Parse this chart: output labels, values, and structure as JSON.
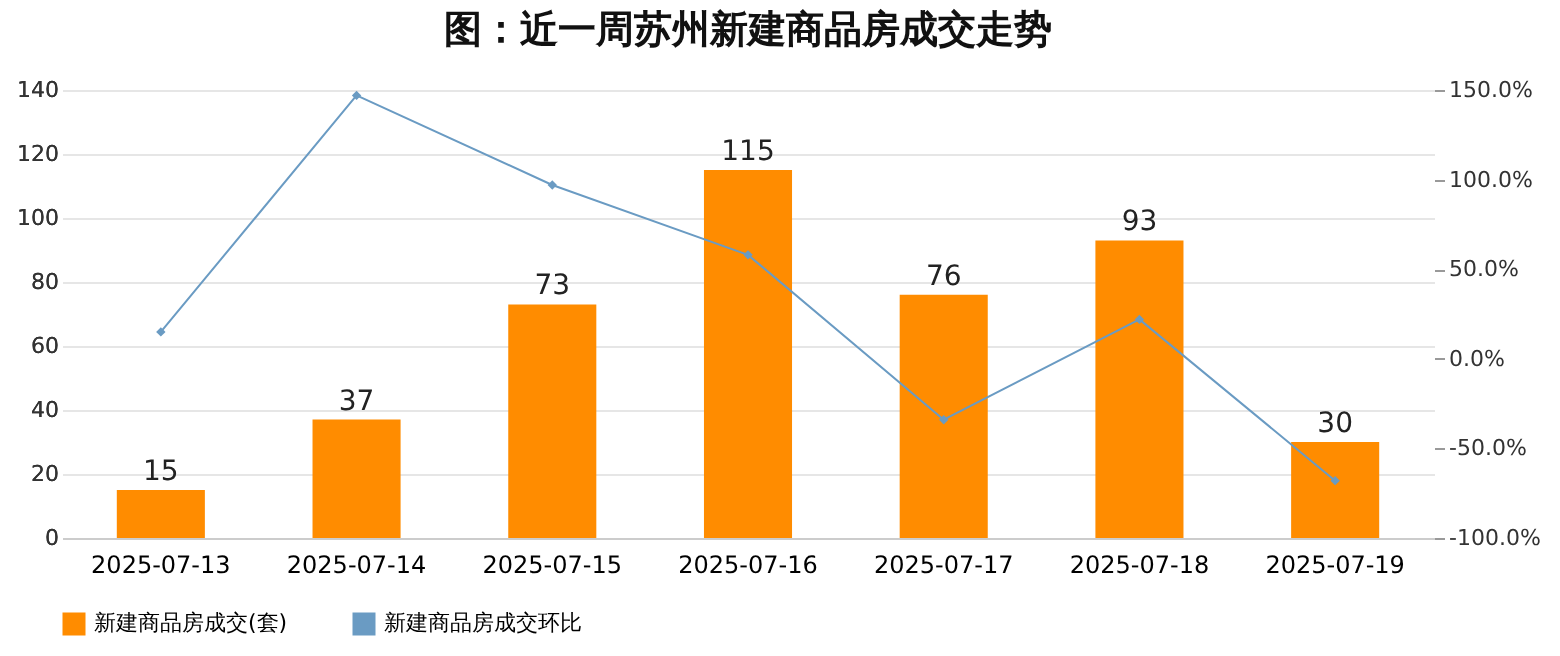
{
  "chart_data": {
    "type": "bar",
    "title": "图：近一周苏州新建商品房成交走势",
    "categories": [
      "2025-07-13",
      "2025-07-14",
      "2025-07-15",
      "2025-07-16",
      "2025-07-17",
      "2025-07-18",
      "2025-07-19"
    ],
    "series": [
      {
        "name": "新建商品房成交(套)",
        "color": "#ff8c00",
        "values": [
          15,
          37,
          73,
          115,
          76,
          93,
          30
        ],
        "value_labels": [
          "15",
          "37",
          "73",
          "115",
          "76",
          "93",
          "30"
        ]
      },
      {
        "name": "新建商品房成交环比",
        "type": "line",
        "axis": "y2",
        "color": "#6a9bc3",
        "marker": "diamond",
        "values": [
          15,
          147,
          97,
          58,
          -34,
          22,
          -68
        ]
      }
    ],
    "ylim": [
      0,
      140
    ],
    "yticks": [
      0,
      20,
      40,
      60,
      80,
      100,
      120,
      140
    ],
    "y2lim": [
      -100,
      150
    ],
    "y2ticks": [
      {
        "value": 150,
        "label": "150.0%"
      },
      {
        "value": 100,
        "label": "100.0%"
      },
      {
        "value": 50,
        "label": "50.0%"
      },
      {
        "value": 0,
        "label": "0.0%"
      },
      {
        "value": -50,
        "label": "-50.0%"
      },
      {
        "value": -100,
        "label": "-100.0%"
      }
    ],
    "grid": "y",
    "legend": "bottom"
  }
}
